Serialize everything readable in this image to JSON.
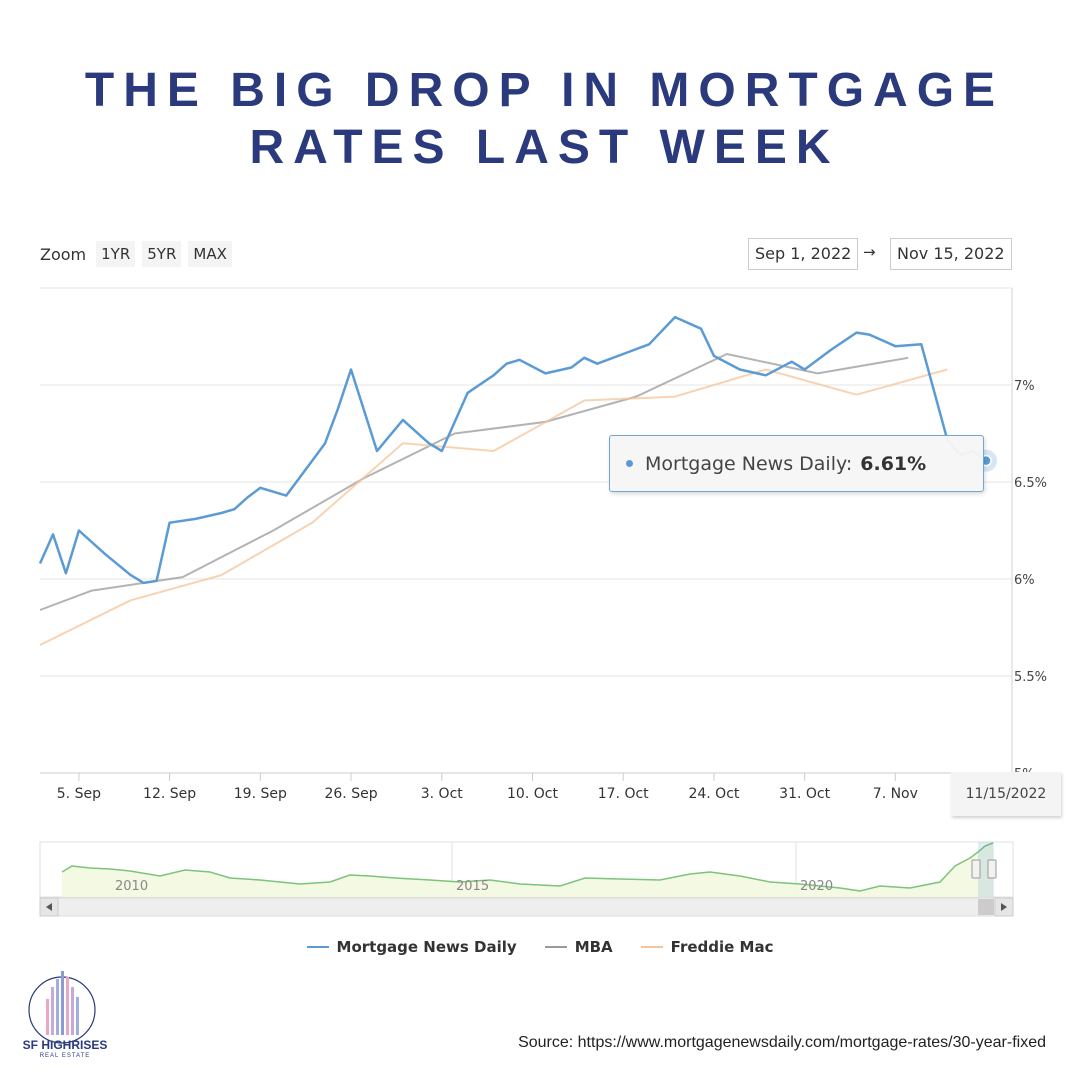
{
  "title": {
    "line1": "THE BIG DROP IN MORTGAGE",
    "line2": "RATES LAST WEEK"
  },
  "zoom": {
    "label": "Zoom",
    "buttons": [
      "1YR",
      "5YR",
      "MAX"
    ]
  },
  "range": {
    "from": "Sep 1, 2022",
    "arrow": "→",
    "to": "Nov 15, 2022"
  },
  "tooltip": {
    "label": "Mortgage News Daily:",
    "value": "6.61%"
  },
  "date_flag": "11/15/2022",
  "navigator": {
    "years": [
      "2010",
      "2015",
      "2020"
    ]
  },
  "legend": [
    {
      "name": "Mortgage News Daily",
      "color": "#5b9bd5"
    },
    {
      "name": "MBA",
      "color": "#999999"
    },
    {
      "name": "Freddie Mac",
      "color": "#f5c49a"
    }
  ],
  "logo": {
    "name": "SF HIGHRISES",
    "sub": "REAL ESTATE"
  },
  "source": "Source: https://www.mortgagenewsdaily.com/mortgage-rates/30-year-fixed",
  "chart_data": {
    "type": "line",
    "xlabels": [
      "5. Sep",
      "12. Sep",
      "19. Sep",
      "26. Sep",
      "3. Oct",
      "10. Oct",
      "17. Oct",
      "24. Oct",
      "31. Oct",
      "7. Nov"
    ],
    "xlabel_days": [
      4,
      11,
      18,
      25,
      32,
      39,
      46,
      53,
      60,
      67
    ],
    "yticks": [
      "5%",
      "5.5%",
      "6%",
      "6.5%",
      "7%"
    ],
    "ytick_values": [
      5,
      5.5,
      6,
      6.5,
      7
    ],
    "ylim": [
      5,
      7.5
    ],
    "xlim_days": [
      1,
      76
    ],
    "grid": true,
    "legend_position": "bottom",
    "series": [
      {
        "name": "Mortgage News Daily",
        "color": "#5b9bd5",
        "points": [
          [
            1,
            6.08
          ],
          [
            2,
            6.23
          ],
          [
            3,
            6.03
          ],
          [
            4,
            6.25
          ],
          [
            6,
            6.13
          ],
          [
            8,
            6.02
          ],
          [
            9,
            5.98
          ],
          [
            10,
            5.99
          ],
          [
            11,
            6.29
          ],
          [
            13,
            6.31
          ],
          [
            15,
            6.34
          ],
          [
            16,
            6.36
          ],
          [
            17,
            6.42
          ],
          [
            18,
            6.47
          ],
          [
            20,
            6.43
          ],
          [
            22,
            6.61
          ],
          [
            23,
            6.7
          ],
          [
            24,
            6.88
          ],
          [
            25,
            7.08
          ],
          [
            27,
            6.66
          ],
          [
            29,
            6.82
          ],
          [
            31,
            6.7
          ],
          [
            32,
            6.66
          ],
          [
            34,
            6.96
          ],
          [
            36,
            7.05
          ],
          [
            37,
            7.11
          ],
          [
            38,
            7.13
          ],
          [
            40,
            7.06
          ],
          [
            42,
            7.09
          ],
          [
            43,
            7.14
          ],
          [
            44,
            7.11
          ],
          [
            46,
            7.16
          ],
          [
            48,
            7.21
          ],
          [
            50,
            7.35
          ],
          [
            52,
            7.29
          ],
          [
            53,
            7.15
          ],
          [
            55,
            7.08
          ],
          [
            57,
            7.05
          ],
          [
            59,
            7.12
          ],
          [
            60,
            7.08
          ],
          [
            62,
            7.18
          ],
          [
            64,
            7.27
          ],
          [
            65,
            7.26
          ],
          [
            67,
            7.2
          ],
          [
            69,
            7.21
          ],
          [
            71,
            6.72
          ],
          [
            72,
            6.64
          ],
          [
            73,
            6.66
          ],
          [
            74,
            6.61
          ]
        ]
      },
      {
        "name": "MBA",
        "color": "#999999",
        "points": [
          [
            1,
            5.84
          ],
          [
            5,
            5.94
          ],
          [
            12,
            6.01
          ],
          [
            19,
            6.25
          ],
          [
            26,
            6.52
          ],
          [
            33,
            6.75
          ],
          [
            40,
            6.81
          ],
          [
            47,
            6.94
          ],
          [
            54,
            7.16
          ],
          [
            61,
            7.06
          ],
          [
            68,
            7.14
          ]
        ]
      },
      {
        "name": "Freddie Mac",
        "color": "#f5c49a",
        "points": [
          [
            1,
            5.66
          ],
          [
            8,
            5.89
          ],
          [
            15,
            6.02
          ],
          [
            22,
            6.29
          ],
          [
            29,
            6.7
          ],
          [
            36,
            6.66
          ],
          [
            43,
            6.92
          ],
          [
            50,
            6.94
          ],
          [
            57,
            7.08
          ],
          [
            64,
            6.95
          ],
          [
            71,
            7.08
          ]
        ]
      }
    ]
  }
}
